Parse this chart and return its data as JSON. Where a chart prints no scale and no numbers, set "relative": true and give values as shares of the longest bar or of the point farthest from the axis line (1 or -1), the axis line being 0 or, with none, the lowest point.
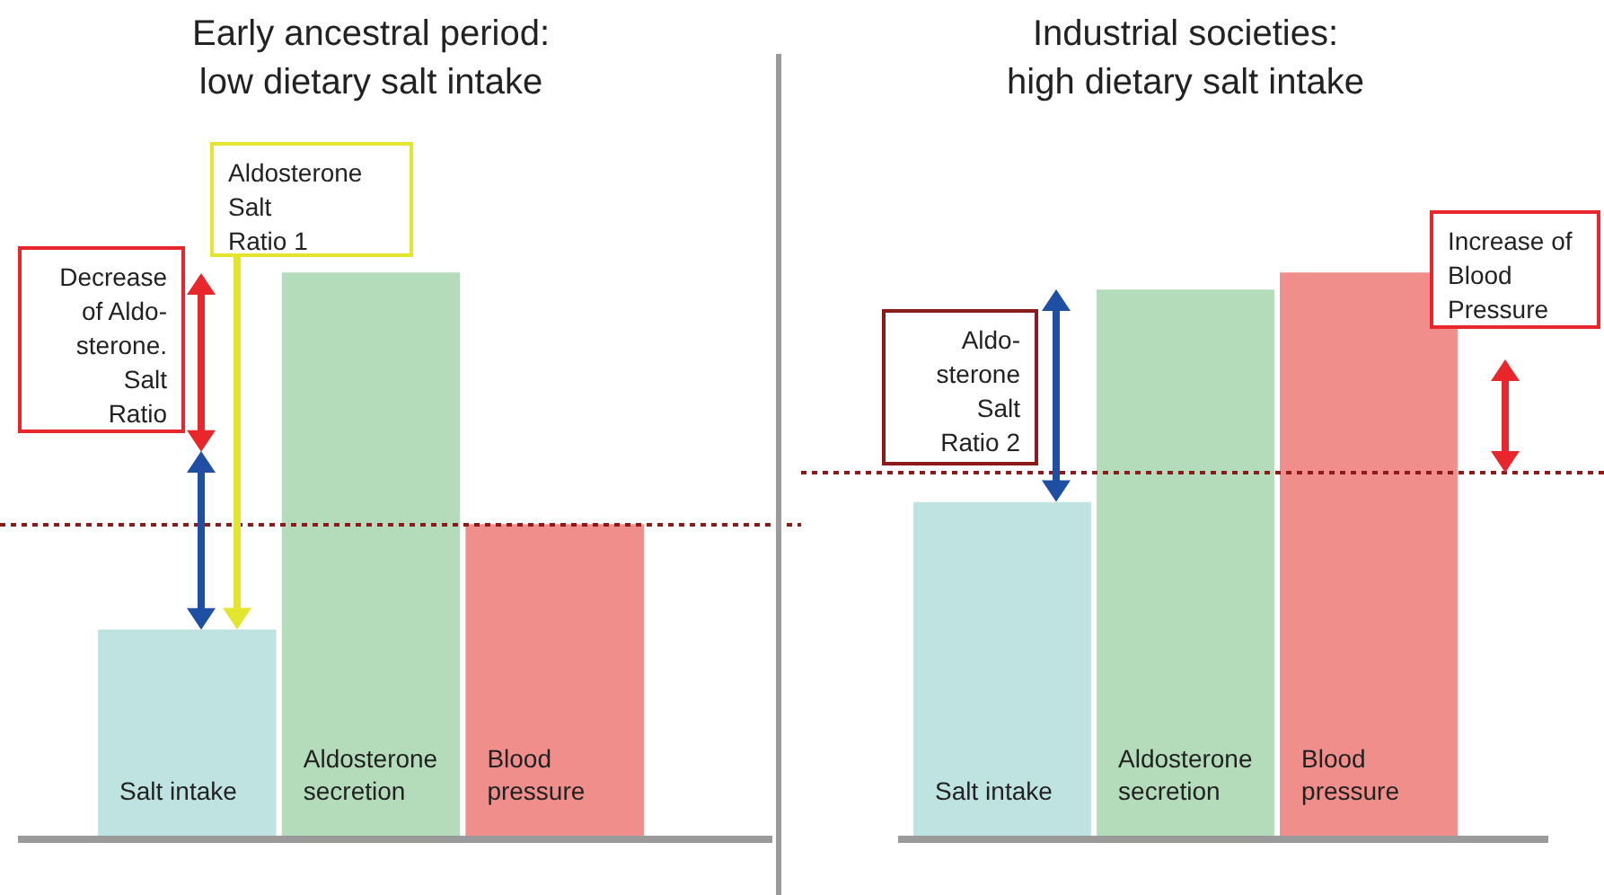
{
  "chart_data": [
    {
      "type": "bar",
      "relative": true,
      "title": "Early ancestral period:\nlow dietary salt intake",
      "categories": [
        "Salt intake",
        "Aldosterone secretion",
        "Blood pressure"
      ],
      "values": [
        0.37,
        1,
        0.556
      ],
      "colors": [
        "#bfe3e1",
        "#b4dcba",
        "#ef8e8b"
      ],
      "ref_lines": [
        {
          "axis": "y",
          "value": 0.556,
          "color": "#8b1a1a",
          "line_style": "dotted"
        }
      ],
      "annotations": [
        "Decrease\nof Aldo-\nsterone.\nSalt\nRatio",
        "Aldosterone\nSalt\nRatio 1"
      ]
    },
    {
      "type": "bar",
      "relative": true,
      "title": "Industrial societies:\nhigh dietary salt intake",
      "categories": [
        "Salt intake",
        "Aldosterone secretion",
        "Blood pressure"
      ],
      "values": [
        0.595,
        0.97,
        1
      ],
      "colors": [
        "#bfe3e1",
        "#b4dcba",
        "#ef8e8b"
      ],
      "ref_lines": [
        {
          "axis": "y",
          "value": 0.647,
          "color": "#8b1a1a",
          "line_style": "dotted"
        }
      ],
      "annotations": [
        "Aldo-\nsterone\nSalt\nRatio 2",
        "Increase of\nBlood\nPressure"
      ]
    }
  ]
}
